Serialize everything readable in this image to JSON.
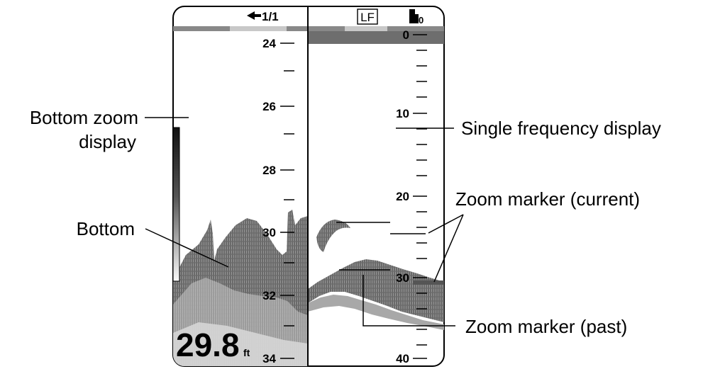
{
  "header": {
    "page_indicator": "1/1",
    "frequency_label": "LF",
    "gain_indicator": "0"
  },
  "scales": {
    "left_ticks": [
      "24",
      "26",
      "28",
      "30",
      "32",
      "34"
    ],
    "right_ticks": [
      "0",
      "10",
      "20",
      "30",
      "40"
    ]
  },
  "readout": {
    "depth_value": "29.8",
    "depth_unit": "ft"
  },
  "callouts": {
    "bottom_zoom_display_line1": "Bottom zoom",
    "bottom_zoom_display_line2": "display",
    "bottom": "Bottom",
    "single_frequency_display": "Single frequency display",
    "zoom_marker_current": "Zoom marker (current)",
    "zoom_marker_past": "Zoom marker (past)"
  },
  "colors": {
    "echo_dark": "#555555",
    "echo_mid": "#888888",
    "bar_light": "#c8c8c8",
    "bar_dark": "#777777"
  }
}
